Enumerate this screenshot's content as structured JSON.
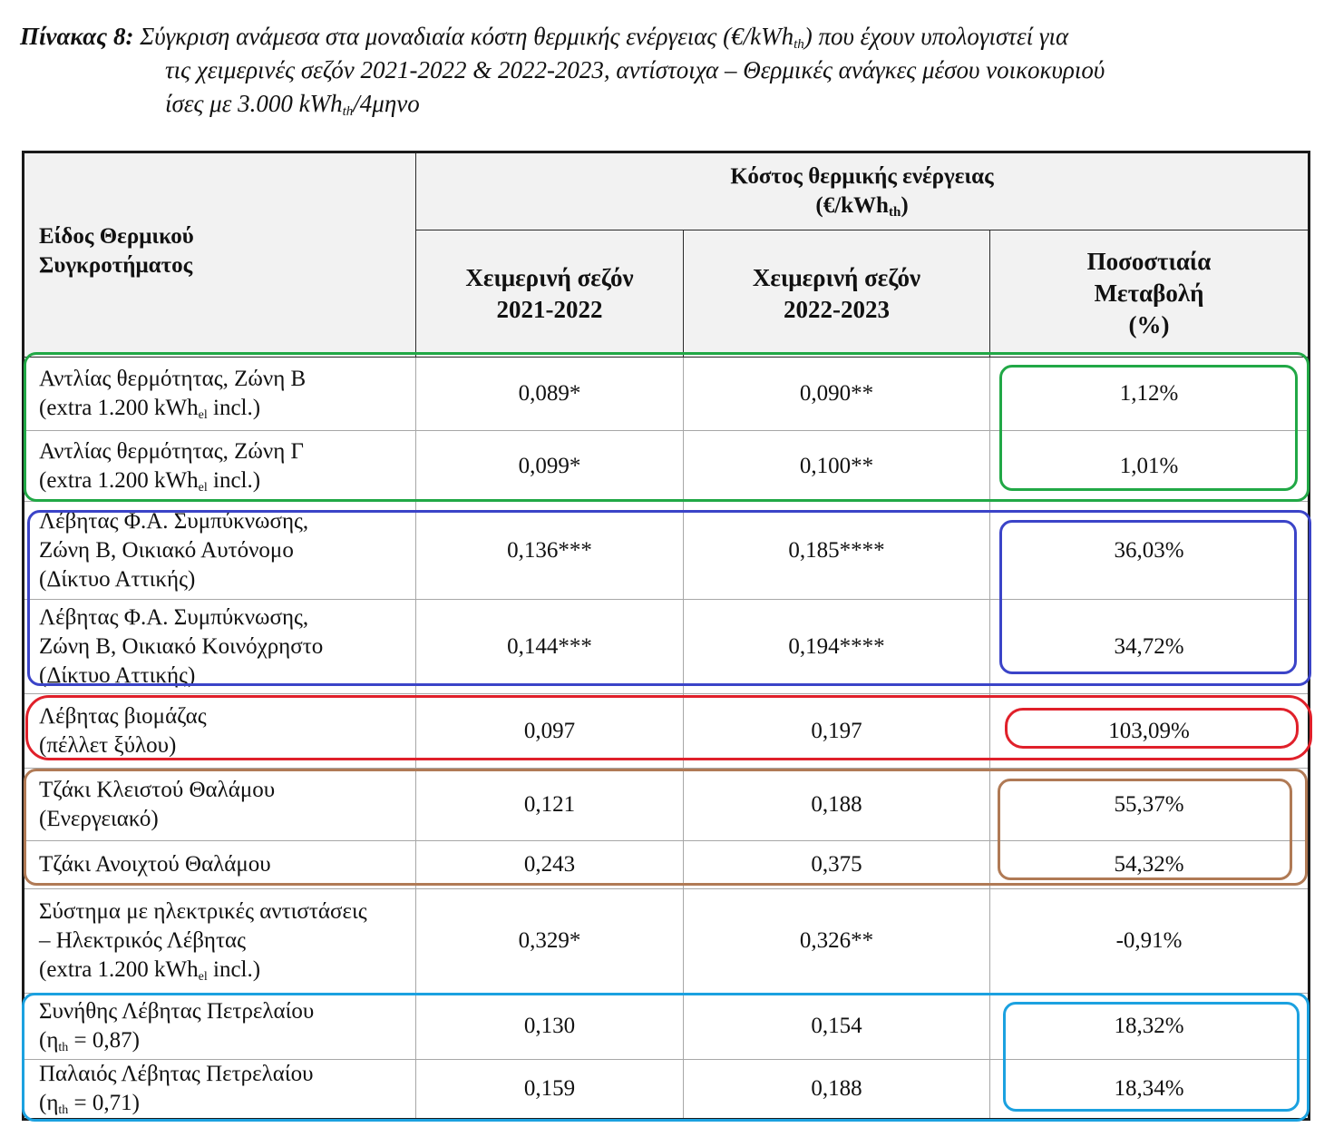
{
  "caption": {
    "lead": "Πίνακας 8:",
    "line1_a": " Σύγκριση ανάμεσα στα μοναδιαία κόστη θερμικής ενέργειας (€/kWh",
    "line1_sub": "th",
    "line1_b": ") που έχουν υπολογιστεί για",
    "line2": "τις χειμερινές σεζόν 2021-2022 & 2022-2023, αντίστοιχα – Θερμικές ανάγκες μέσου νοικοκυριού",
    "line3_a": "ίσες με 3.000 kWh",
    "line3_sub": "th",
    "line3_b": "/4μηνο"
  },
  "header": {
    "col1_line1": "Είδος Θερμικού",
    "col1_line2": "Συγκροτήματος",
    "group_line1": "Κόστος θερμικής ενέργειας",
    "group_line2_a": "(€/kWh",
    "group_line2_sub": "th",
    "group_line2_b": ")",
    "season1_line1": "Χειμερινή σεζόν",
    "season1_line2": "2021-2022",
    "season2_line1": "Χειμερινή σεζόν",
    "season2_line2": "2022-2023",
    "change_line1": "Ποσοστιαία",
    "change_line2": "Μεταβολή",
    "change_line3": "(%)"
  },
  "rows": [
    {
      "l1": "Αντλίας θερμότητας, Ζώνη Β",
      "l2a": "(extra 1.200 kWh",
      "l2sub": "el",
      "l2b": " incl.)",
      "v1": "0,089*",
      "v2": "0,090**",
      "pct": "1,12%"
    },
    {
      "l1": "Αντλίας θερμότητας, Ζώνη Γ",
      "l2a": "(extra 1.200 kWh",
      "l2sub": "el",
      "l2b": " incl.)",
      "v1": "0,099*",
      "v2": "0,100**",
      "pct": "1,01%"
    },
    {
      "l1": "Λέβητας Φ.Α. Συμπύκνωσης,",
      "l2": "Ζώνη Β, Οικιακό Αυτόνομο",
      "l3": "(Δίκτυο Αττικής)",
      "v1": "0,136***",
      "v2": "0,185****",
      "pct": "36,03%"
    },
    {
      "l1": "Λέβητας Φ.Α. Συμπύκνωσης,",
      "l2": "Ζώνη Β, Οικιακό Κοινόχρηστο",
      "l3": "(Δίκτυο Αττικής)",
      "v1": "0,144***",
      "v2": "0,194****",
      "pct": "34,72%"
    },
    {
      "l1": "Λέβητας βιομάζας",
      "l2": "(πέλλετ ξύλου)",
      "v1": "0,097",
      "v2": "0,197",
      "pct": "103,09%"
    },
    {
      "l1": "Τζάκι Κλειστού Θαλάμου",
      "l2": "(Ενεργειακό)",
      "v1": "0,121",
      "v2": "0,188",
      "pct": "55,37%"
    },
    {
      "l1": "Τζάκι Ανοιχτού Θαλάμου",
      "v1": "0,243",
      "v2": "0,375",
      "pct": "54,32%"
    },
    {
      "l1": "Σύστημα με ηλεκτρικές αντιστάσεις",
      "l2": "– Ηλεκτρικός Λέβητας",
      "l3a": "(extra 1.200 kWh",
      "l3sub": "el",
      "l3b": " incl.)",
      "v1": "0,329*",
      "v2": "0,326**",
      "pct": "-0,91%"
    },
    {
      "l1": "Συνήθης Λέβητας Πετρελαίου",
      "l2a": "(η",
      "l2sub": "th",
      "l2b": " = 0,87)",
      "v1": "0,130",
      "v2": "0,154",
      "pct": "18,32%"
    },
    {
      "l1": "Παλαιός Λέβητας Πετρελαίου",
      "l2a": "(η",
      "l2sub": "th",
      "l2b": " = 0,71)",
      "v1": "0,159",
      "v2": "0,188",
      "pct": "18,34%"
    }
  ],
  "highlight_colors": {
    "heat_pump": "#21a846",
    "natural_gas": "#3b44c8",
    "biomass": "#e0202a",
    "fireplace": "#b07a55",
    "oil": "#1ba1e0"
  }
}
